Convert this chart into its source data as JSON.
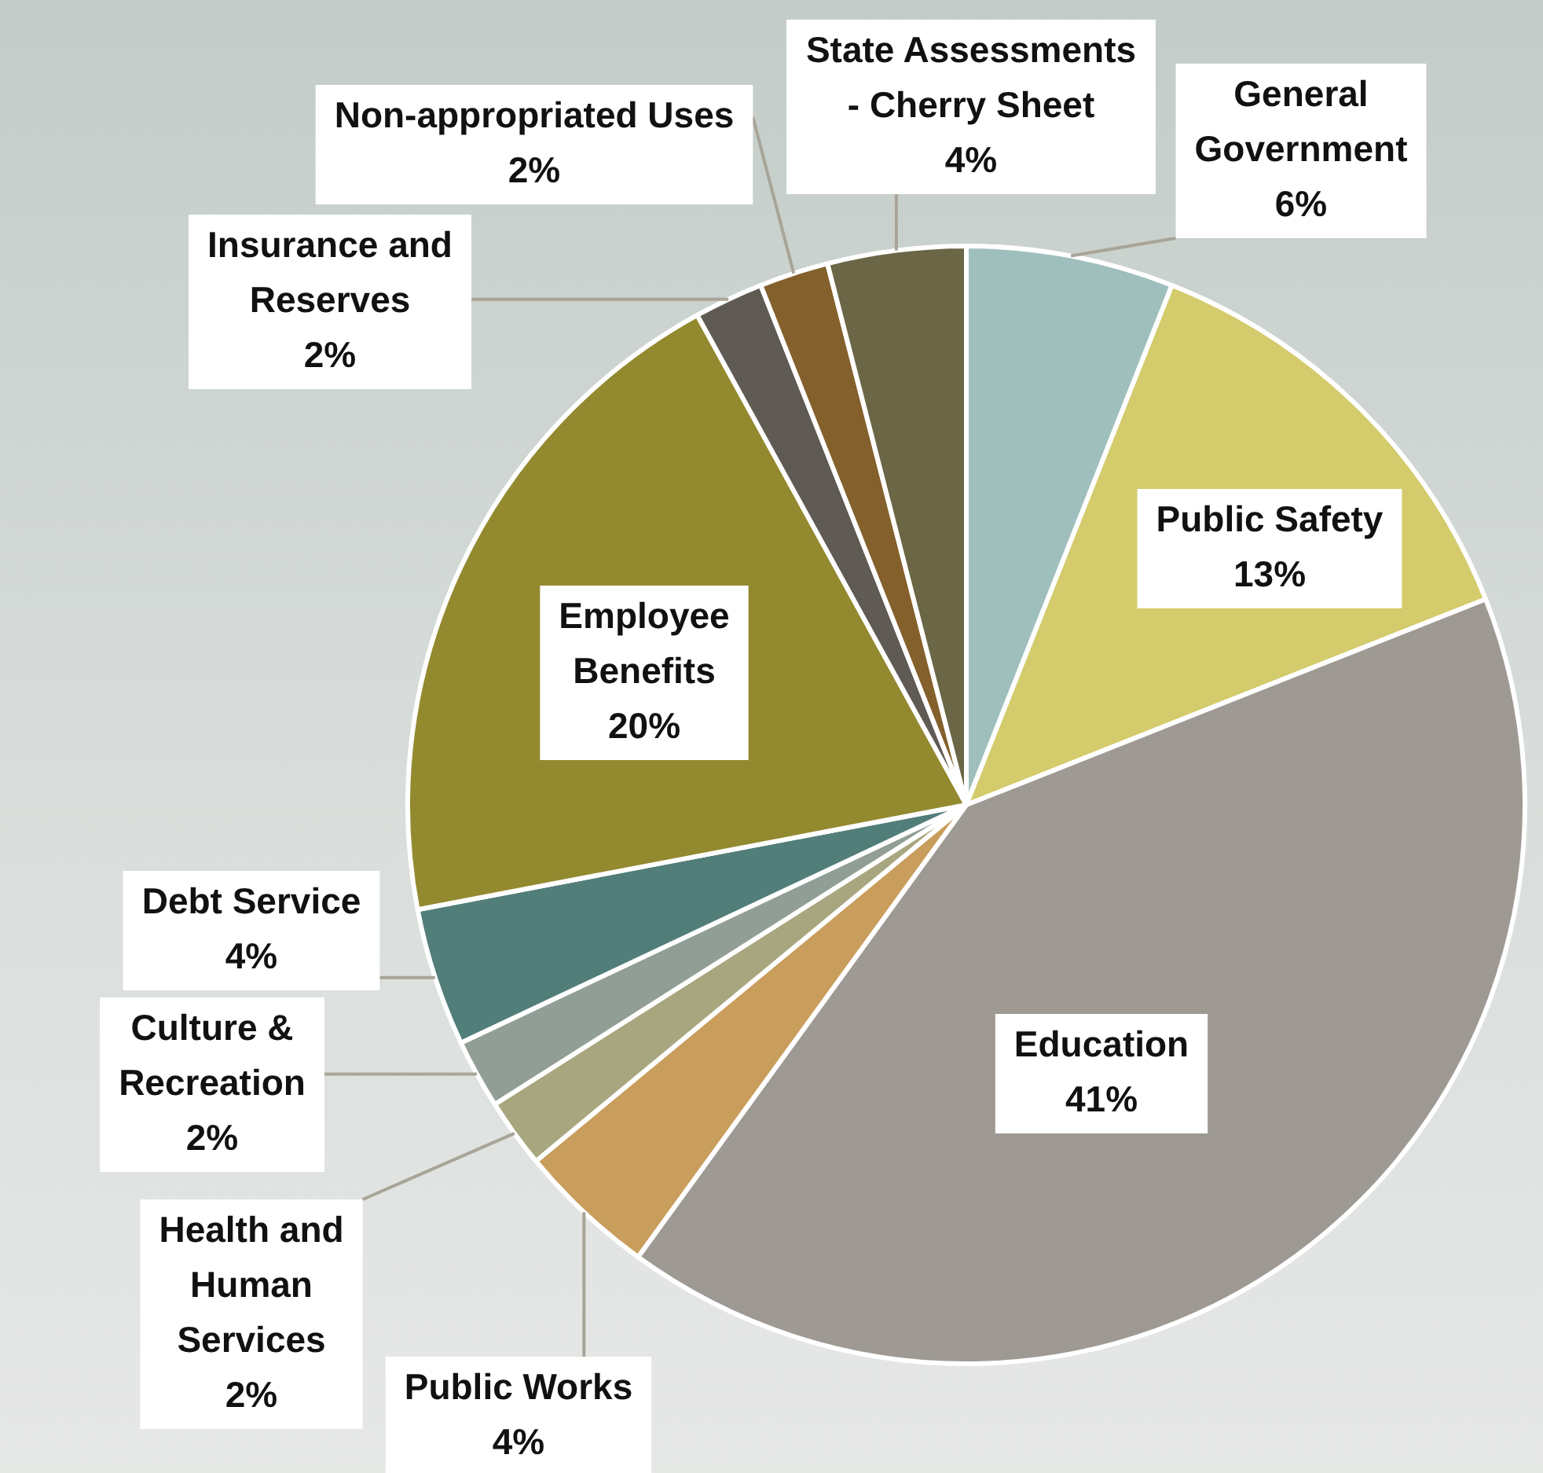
{
  "chart_data": {
    "type": "pie",
    "categories": [
      "General Government",
      "Public Safety",
      "Education",
      "Public Works",
      "Health and Human Services",
      "Culture & Recreation",
      "Debt Service",
      "Employee Benefits",
      "Insurance and Reserves",
      "Non-appropriated Uses",
      "State Assessments - Cherry Sheet"
    ],
    "values": [
      6,
      13,
      41,
      4,
      2,
      2,
      4,
      20,
      2,
      2,
      4
    ],
    "value_labels": [
      "6%",
      "13%",
      "41%",
      "4%",
      "2%",
      "2%",
      "4%",
      "20%",
      "2%",
      "2%",
      "4%"
    ],
    "colors": [
      "#9fbfbd",
      "#d3cb6c",
      "#9e9a93",
      "#c99d5c",
      "#a8a67e",
      "#919e95",
      "#527e7a",
      "#93892f",
      "#5f5a53",
      "#84602c",
      "#6b6645"
    ],
    "legend": false
  }
}
